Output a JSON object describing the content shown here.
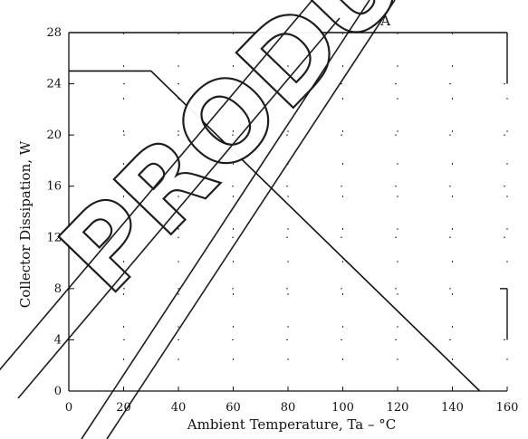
{
  "chart_data": {
    "type": "line",
    "title": "",
    "xlabel": "Ambient Temperature, Ta – °C",
    "ylabel": "Collector Dissipation, W",
    "xlim": [
      0,
      160
    ],
    "ylim": [
      0,
      28
    ],
    "x_ticks": [
      "0",
      "20",
      "40",
      "60",
      "80",
      "100",
      "120",
      "140",
      "160"
    ],
    "y_ticks": [
      "0",
      "4",
      "8",
      "12",
      "16",
      "20",
      "24",
      "28"
    ],
    "grid": "dotted",
    "series": [
      {
        "name": "",
        "x": [
          0,
          30,
          150
        ],
        "y": [
          25,
          25,
          0
        ]
      },
      {
        "name": "",
        "x": [
          0,
          160
        ],
        "y": [
          28,
          28
        ]
      }
    ],
    "annotations": [
      {
        "text": "– 1 A",
        "x": 105,
        "y": 28
      }
    ]
  },
  "watermark": {
    "text": "PRODU"
  },
  "colors": {
    "line": "#111111",
    "background": "#ffffff"
  }
}
